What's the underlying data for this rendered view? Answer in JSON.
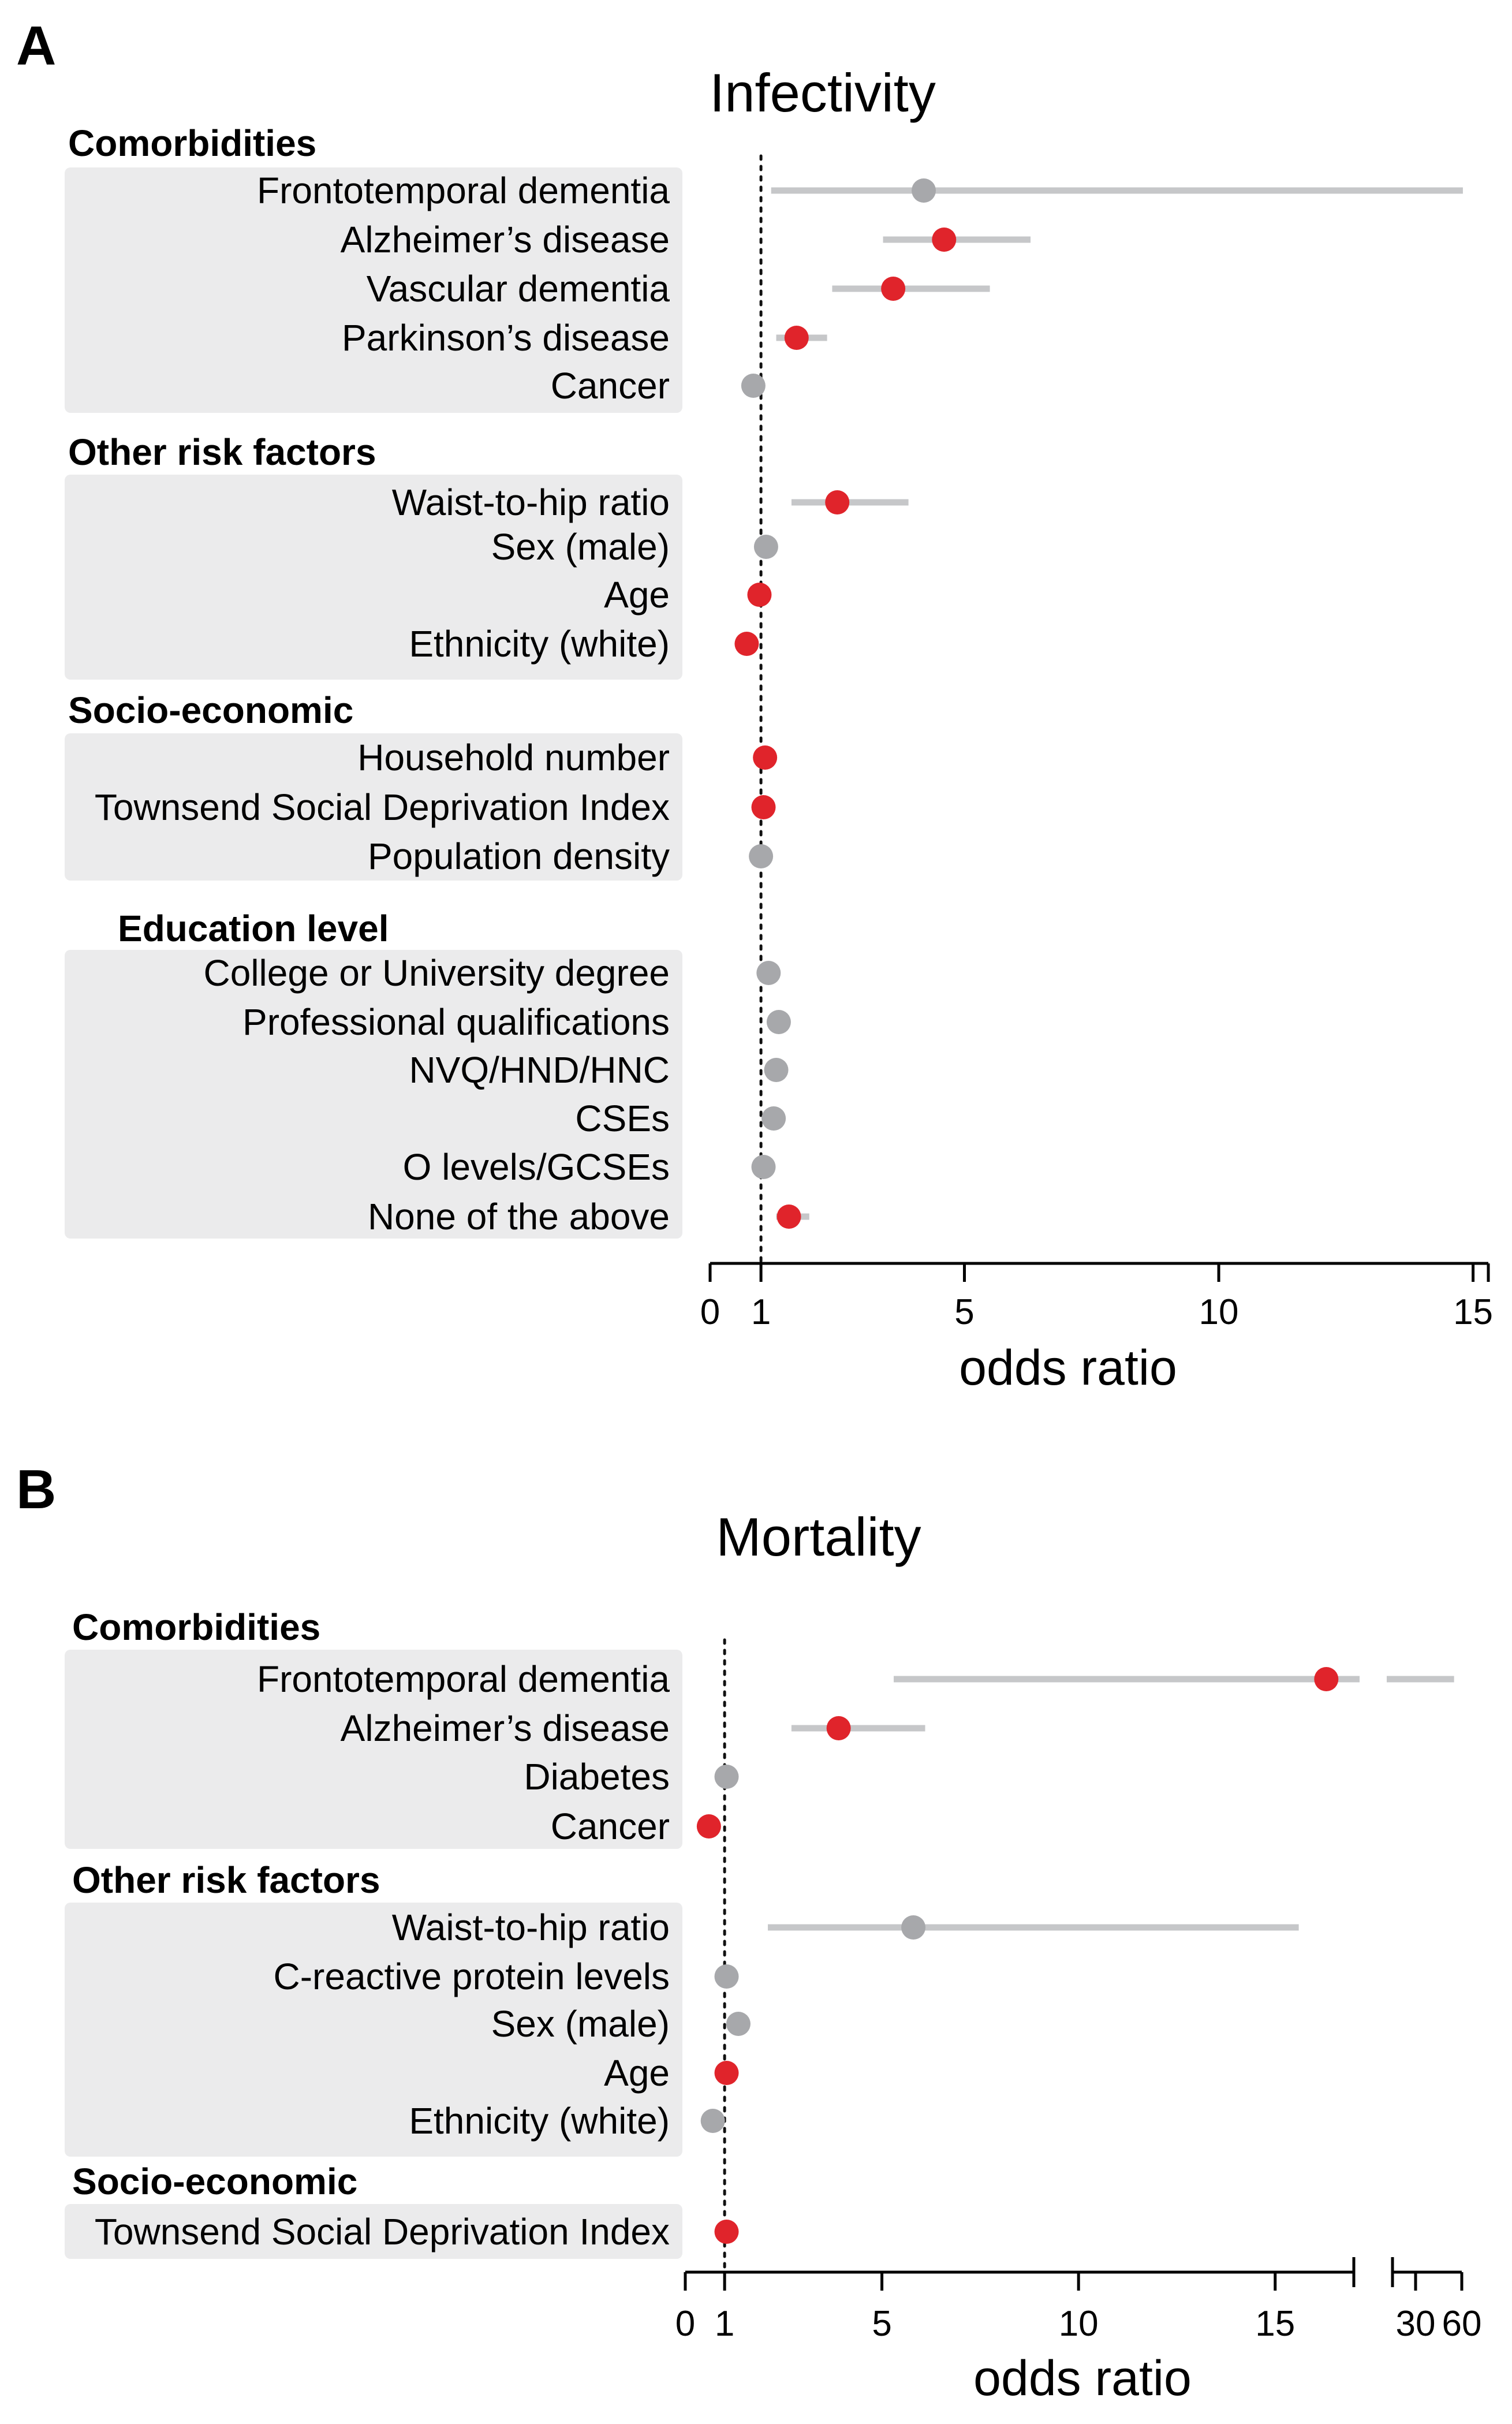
{
  "chart_data": [
    {
      "type": "forest",
      "panel": "A",
      "title": "Infectivity",
      "xlabel": "odds ratio",
      "xlim": [
        0,
        15
      ],
      "xticks": [
        0,
        1,
        5,
        10,
        15
      ],
      "reference_line": 1,
      "colors": {
        "significant": "#e0242b",
        "not_significant": "#a7a8ab",
        "ci": "#c6c7c9"
      },
      "groups": [
        {
          "heading": "Comorbidities",
          "items": [
            {
              "label": "Frontotemporal dementia",
              "or": 4.2,
              "lo": 1.2,
              "hi": 14.8,
              "significant": false
            },
            {
              "label": "Alzheimer’s disease",
              "or": 4.6,
              "lo": 3.4,
              "hi": 6.3,
              "significant": true
            },
            {
              "label": "Vascular dementia",
              "or": 3.6,
              "lo": 2.4,
              "hi": 5.5,
              "significant": true
            },
            {
              "label": "Parkinson’s disease",
              "or": 1.7,
              "lo": 1.3,
              "hi": 2.3,
              "significant": true
            },
            {
              "label": "Cancer",
              "or": 0.85,
              "lo": 0.8,
              "hi": 0.9,
              "significant": false
            }
          ]
        },
        {
          "heading": "Other risk factors",
          "items": [
            {
              "label": "Waist-to-hip ratio",
              "or": 2.5,
              "lo": 1.6,
              "hi": 3.9,
              "significant": true
            },
            {
              "label": "Sex (male)",
              "or": 1.1,
              "lo": 1.05,
              "hi": 1.15,
              "significant": false
            },
            {
              "label": "Age",
              "or": 0.97,
              "lo": 0.95,
              "hi": 0.99,
              "significant": true
            },
            {
              "label": "Ethnicity (white)",
              "or": 0.72,
              "lo": 0.65,
              "hi": 0.8,
              "significant": true
            }
          ]
        },
        {
          "heading": "Socio-economic",
          "items": [
            {
              "label": "Household number",
              "or": 1.08,
              "lo": 1.05,
              "hi": 1.11,
              "significant": true
            },
            {
              "label": "Townsend Social Deprivation Index",
              "or": 1.05,
              "lo": 1.03,
              "hi": 1.07,
              "significant": true
            },
            {
              "label": "Population density",
              "or": 1.0,
              "lo": 0.98,
              "hi": 1.02,
              "significant": false
            }
          ]
        },
        {
          "heading": "Education level",
          "items": [
            {
              "label": "College or University degree",
              "or": 1.15,
              "lo": 1.05,
              "hi": 1.25,
              "significant": false
            },
            {
              "label": "Professional qualifications",
              "or": 1.35,
              "lo": 1.2,
              "hi": 1.5,
              "significant": false
            },
            {
              "label": "NVQ/HND/HNC",
              "or": 1.3,
              "lo": 1.15,
              "hi": 1.45,
              "significant": false
            },
            {
              "label": "CSEs",
              "or": 1.25,
              "lo": 1.1,
              "hi": 1.4,
              "significant": false
            },
            {
              "label": "O levels/GCSEs",
              "or": 1.05,
              "lo": 0.95,
              "hi": 1.15,
              "significant": false
            },
            {
              "label": "None of the above",
              "or": 1.55,
              "lo": 1.3,
              "hi": 1.95,
              "significant": true
            }
          ]
        }
      ]
    },
    {
      "type": "forest",
      "panel": "B",
      "title": "Mortality",
      "xlabel": "odds ratio",
      "xlim": [
        0,
        60
      ],
      "xticks": [
        0,
        1,
        5,
        10,
        15,
        30,
        60
      ],
      "axis_break": {
        "from": 17,
        "to": 30
      },
      "reference_line": 1,
      "colors": {
        "significant": "#e0242b",
        "not_significant": "#a7a8ab",
        "ci": "#c6c7c9"
      },
      "groups": [
        {
          "heading": "Comorbidities",
          "items": [
            {
              "label": "Frontotemporal dementia",
              "or": 16.3,
              "lo": 5.3,
              "hi": 55.0,
              "significant": true
            },
            {
              "label": "Alzheimer’s disease",
              "or": 3.9,
              "lo": 2.7,
              "hi": 6.1,
              "significant": true
            },
            {
              "label": "Diabetes",
              "or": 1.05,
              "lo": 0.98,
              "hi": 1.12,
              "significant": false
            },
            {
              "label": "Cancer",
              "or": 0.6,
              "lo": 0.5,
              "hi": 0.7,
              "significant": true
            }
          ]
        },
        {
          "heading": "Other risk factors",
          "items": [
            {
              "label": "Waist-to-hip ratio",
              "or": 5.8,
              "lo": 2.1,
              "hi": 15.6,
              "significant": false
            },
            {
              "label": "C-reactive protein levels",
              "or": 1.05,
              "lo": 1.0,
              "hi": 1.1,
              "significant": false
            },
            {
              "label": "Sex (male)",
              "or": 1.35,
              "lo": 1.2,
              "hi": 1.5,
              "significant": false
            },
            {
              "label": "Age",
              "or": 1.05,
              "lo": 1.03,
              "hi": 1.07,
              "significant": true
            },
            {
              "label": "Ethnicity (white)",
              "or": 0.7,
              "lo": 0.6,
              "hi": 0.8,
              "significant": false
            }
          ]
        },
        {
          "heading": "Socio-economic",
          "items": [
            {
              "label": "Townsend Social Deprivation Index",
              "or": 1.05,
              "lo": 1.03,
              "hi": 1.07,
              "significant": true
            }
          ]
        }
      ]
    }
  ]
}
